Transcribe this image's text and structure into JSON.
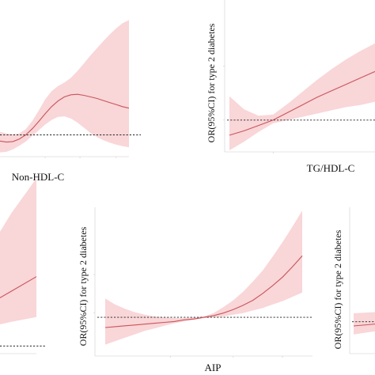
{
  "chart_data": [
    {
      "type": "line",
      "xlabel": "Non-HDL-C",
      "ylabel": "",
      "x_tick_labels": [
        "",
        "",
        ""
      ],
      "y_tick_labels": [],
      "series": [
        {
          "x": [
            0.0,
            0.05,
            0.1,
            0.15,
            0.2,
            0.25,
            0.3,
            0.35,
            0.4,
            0.45,
            0.5,
            0.55,
            0.6,
            0.65,
            0.7,
            0.75,
            0.8,
            0.85,
            0.9,
            0.95,
            1.0
          ],
          "y": [
            0.88,
            0.86,
            0.87,
            0.92,
            1.0,
            1.12,
            1.26,
            1.41,
            1.55,
            1.66,
            1.74,
            1.78,
            1.79,
            1.77,
            1.74,
            1.71,
            1.67,
            1.63,
            1.59,
            1.55,
            1.52
          ],
          "lower": [
            0.66,
            0.67,
            0.72,
            0.79,
            0.87,
            0.98,
            1.09,
            1.2,
            1.29,
            1.35,
            1.36,
            1.32,
            1.24,
            1.14,
            1.04,
            0.96,
            0.9,
            0.85,
            0.81,
            0.78,
            0.76
          ],
          "upper": [
            1.06,
            1.03,
            1.01,
            1.03,
            1.11,
            1.27,
            1.47,
            1.69,
            1.85,
            1.95,
            2.02,
            2.11,
            2.24,
            2.39,
            2.54,
            2.68,
            2.82,
            2.95,
            3.07,
            3.17,
            3.23
          ]
        }
      ],
      "reference_line": 1,
      "colors": {
        "line": "#c9545c",
        "band": "#f9d6d8",
        "reference": "#222222"
      }
    },
    {
      "type": "line",
      "xlabel": "TG/HDL-C",
      "ylabel": "OR(95%CI) for type 2 diabetes",
      "x_tick_labels": [
        ""
      ],
      "y_tick_labels": [
        "",
        "",
        ""
      ],
      "series": [
        {
          "x": [
            0.0,
            0.1,
            0.2,
            0.3,
            0.4,
            0.5,
            0.6,
            0.7,
            0.8,
            0.9,
            1.0
          ],
          "y": [
            0.86,
            0.9,
            0.95,
            1.0,
            1.07,
            1.14,
            1.21,
            1.27,
            1.33,
            1.39,
            1.45
          ],
          "lower": [
            0.72,
            0.8,
            0.89,
            0.97,
            1.0,
            1.03,
            1.06,
            1.09,
            1.12,
            1.14,
            1.17
          ],
          "upper": [
            1.22,
            1.1,
            1.04,
            1.05,
            1.15,
            1.26,
            1.37,
            1.47,
            1.56,
            1.64,
            1.71
          ]
        }
      ],
      "reference_line": 1,
      "colors": {
        "line": "#c9545c",
        "band": "#f9d6d8",
        "reference": "#222222"
      }
    },
    {
      "type": "line",
      "xlabel": "",
      "ylabel": "",
      "series": [
        {
          "x": [
            0.0,
            0.25,
            0.5,
            0.75,
            1.0
          ],
          "y": [
            1.25,
            1.45,
            1.7,
            1.95,
            2.2
          ],
          "lower": [
            1.1,
            1.2,
            1.32,
            1.42,
            1.5
          ],
          "upper": [
            1.5,
            2.0,
            2.6,
            3.3,
            3.9
          ]
        }
      ],
      "reference_line": 1,
      "colors": {
        "line": "#c9545c",
        "band": "#f9d6d8",
        "reference": "#222222"
      }
    },
    {
      "type": "line",
      "xlabel": "AIP",
      "ylabel": "OR(95%CI) for type 2 diabetes",
      "x_tick_labels": [
        "",
        "",
        ""
      ],
      "y_tick_labels": [
        "",
        "",
        ""
      ],
      "series": [
        {
          "x": [
            0.0,
            0.05,
            0.1,
            0.15,
            0.2,
            0.25,
            0.3,
            0.35,
            0.4,
            0.45,
            0.5,
            0.55,
            0.6,
            0.65,
            0.7,
            0.75,
            0.8,
            0.85,
            0.9,
            0.95,
            1.0
          ],
          "y": [
            0.88,
            0.89,
            0.9,
            0.91,
            0.92,
            0.93,
            0.94,
            0.95,
            0.97,
            0.98,
            1.0,
            1.02,
            1.05,
            1.09,
            1.14,
            1.2,
            1.28,
            1.37,
            1.47,
            1.59,
            1.72
          ],
          "lower": [
            0.68,
            0.72,
            0.76,
            0.8,
            0.84,
            0.87,
            0.9,
            0.93,
            0.95,
            0.97,
            0.99,
            1.0,
            1.01,
            1.03,
            1.05,
            1.08,
            1.11,
            1.15,
            1.19,
            1.24,
            1.29
          ],
          "upper": [
            1.22,
            1.15,
            1.1,
            1.06,
            1.03,
            1.01,
            1.0,
            0.99,
            0.99,
            1.0,
            1.01,
            1.05,
            1.12,
            1.2,
            1.3,
            1.42,
            1.55,
            1.71,
            1.88,
            2.06,
            2.25
          ]
        }
      ],
      "reference_line": 1,
      "colors": {
        "line": "#c9545c",
        "band": "#f9d6d8",
        "reference": "#222222"
      }
    },
    {
      "type": "line",
      "xlabel": "",
      "ylabel": "OR(95%CI) for type 2 diabetes",
      "series": [
        {
          "x": [
            0.0,
            0.5,
            1.0
          ],
          "y": [
            0.95,
            0.98,
            1.0
          ],
          "lower": [
            0.85,
            0.9,
            0.93
          ],
          "upper": [
            1.1,
            1.12,
            1.15
          ]
        }
      ],
      "reference_line": 1,
      "colors": {
        "line": "#c9545c",
        "band": "#f9d6d8",
        "reference": "#222222"
      }
    }
  ]
}
